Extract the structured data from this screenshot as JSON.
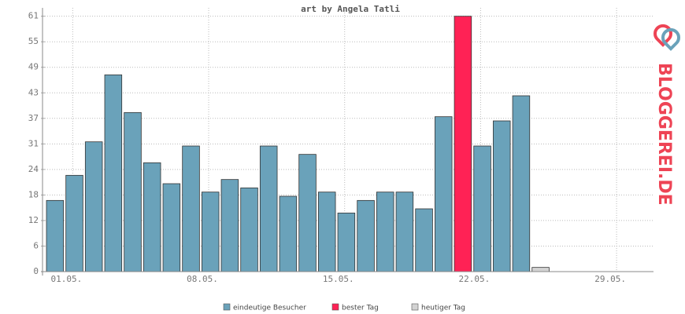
{
  "logo": "BLOGGEREI.DE",
  "chart_data": {
    "type": "bar",
    "title": "art by Angela Tatli",
    "categories": [
      "01.05.",
      null,
      null,
      null,
      null,
      null,
      null,
      "08.05.",
      null,
      null,
      null,
      null,
      null,
      null,
      "15.05.",
      null,
      null,
      null,
      null,
      null,
      null,
      "22.05.",
      null,
      null,
      null,
      null,
      null,
      null,
      "29.05.",
      null,
      null
    ],
    "series": [
      {
        "name": "eindeutige Besucher",
        "color": "#6aa2ba",
        "values": [
          17,
          23,
          31,
          47,
          38,
          26,
          21,
          30,
          19,
          22,
          20,
          30,
          18,
          28,
          19,
          14,
          17,
          19,
          19,
          15,
          37,
          null,
          30,
          36,
          42,
          null,
          null,
          null,
          null,
          null,
          null
        ]
      },
      {
        "name": "bester Tag",
        "color": "#ff2255",
        "values": [
          null,
          null,
          null,
          null,
          null,
          null,
          null,
          null,
          null,
          null,
          null,
          null,
          null,
          null,
          null,
          null,
          null,
          null,
          null,
          null,
          null,
          61,
          null,
          null,
          null,
          null,
          null,
          null,
          null,
          null,
          null
        ]
      },
      {
        "name": "heutiger Tag",
        "color": "#d3d3d3",
        "values": [
          null,
          null,
          null,
          null,
          null,
          null,
          null,
          null,
          null,
          null,
          null,
          null,
          null,
          null,
          null,
          null,
          null,
          null,
          null,
          null,
          null,
          null,
          null,
          null,
          null,
          1,
          null,
          null,
          null,
          null,
          null
        ]
      }
    ],
    "ylim": [
      0,
      63
    ],
    "yticks": [
      0,
      {
        "value": 6.1,
        "label": "6"
      },
      {
        "value": 12.2,
        "label": "12"
      },
      {
        "value": 18.3,
        "label": "18"
      },
      {
        "value": 24.4,
        "label": "24"
      },
      {
        "value": 30.5,
        "label": "31"
      },
      {
        "value": 36.6,
        "label": "37"
      },
      {
        "value": 42.7,
        "label": "43"
      },
      {
        "value": 48.8,
        "label": "49"
      },
      {
        "value": 54.9,
        "label": "55"
      },
      61
    ],
    "grid": true
  }
}
